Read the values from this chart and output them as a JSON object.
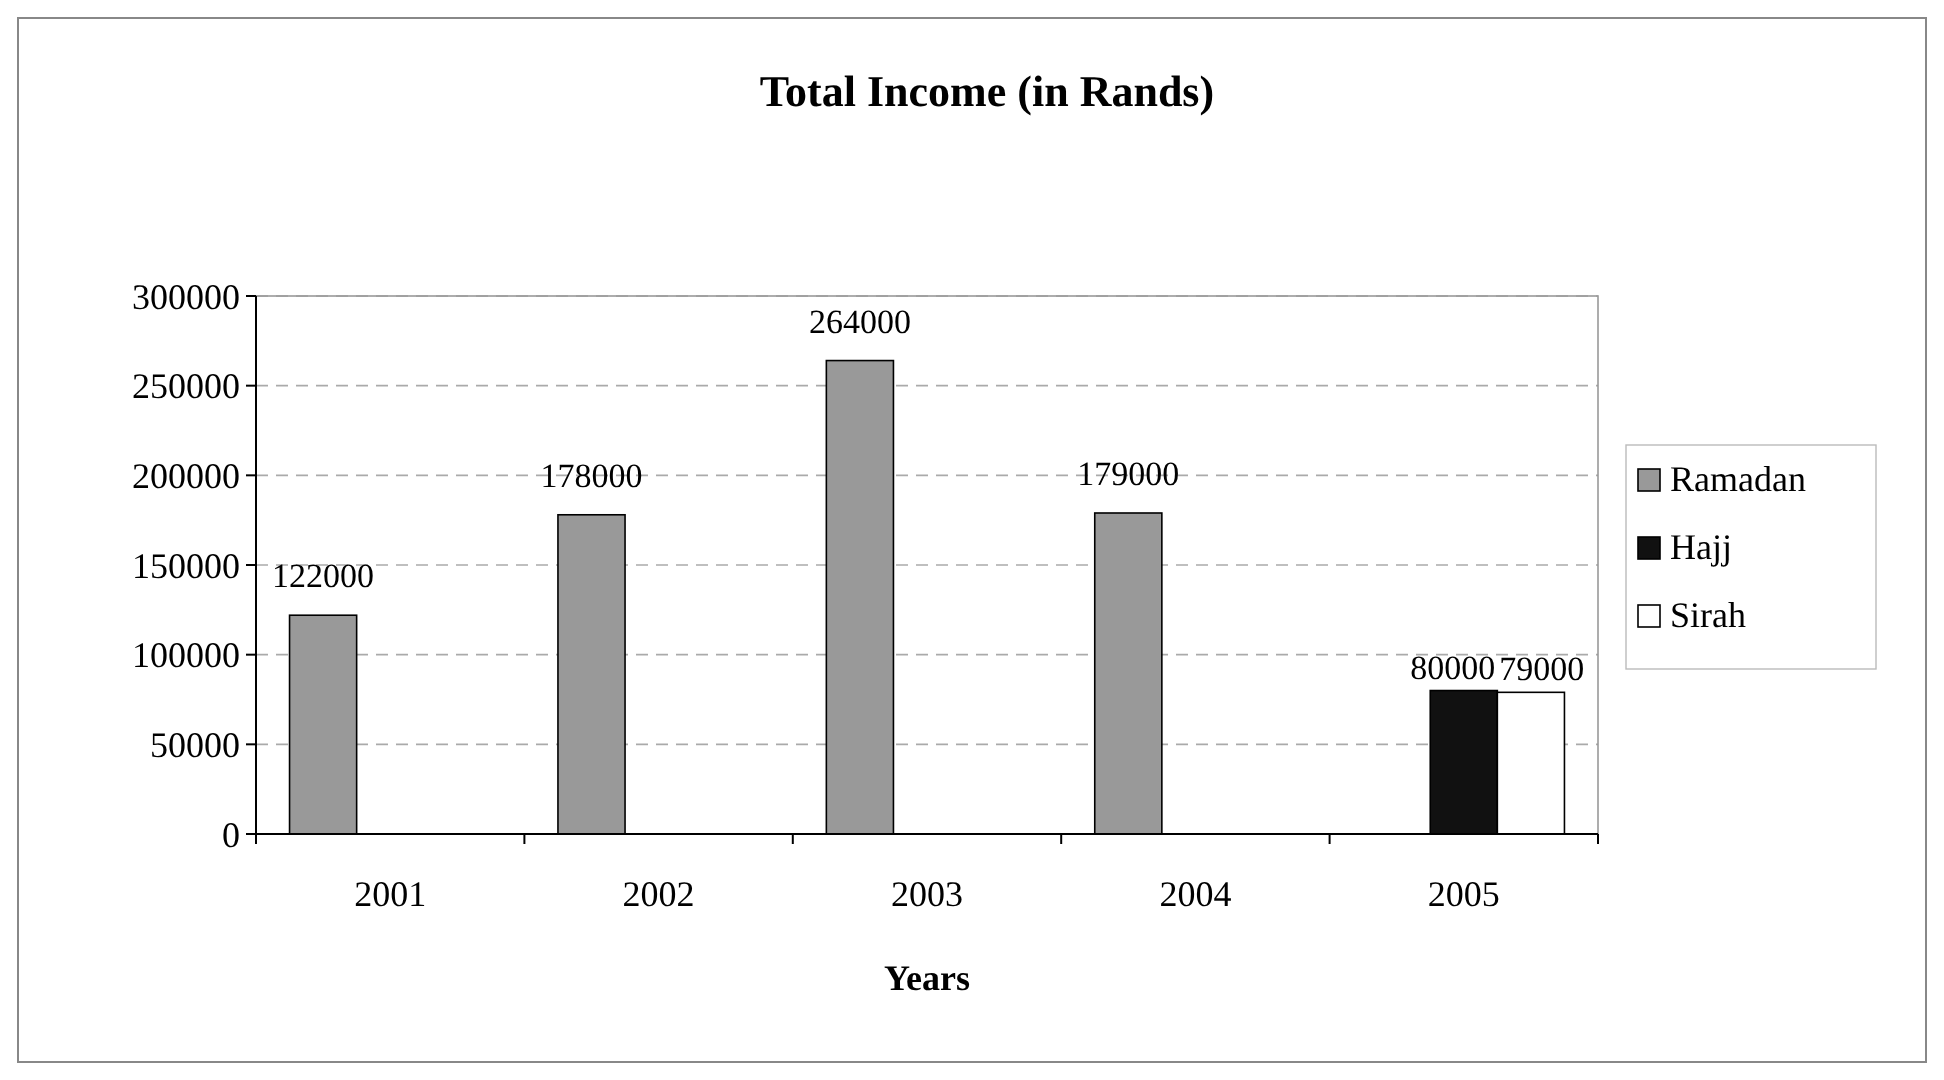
{
  "chart_data": {
    "type": "bar",
    "title": "Total Income (in Rands)",
    "xlabel": "Years",
    "categories": [
      "2001",
      "2002",
      "2003",
      "2004",
      "2005"
    ],
    "series": [
      {
        "name": "Ramadan",
        "color": "#999999",
        "values": [
          122000,
          178000,
          264000,
          179000,
          null
        ]
      },
      {
        "name": "Hajj",
        "color": "#111111",
        "values": [
          null,
          null,
          null,
          null,
          80000
        ]
      },
      {
        "name": "Sirah",
        "color": "#ffffff",
        "values": [
          null,
          null,
          null,
          null,
          79000
        ]
      }
    ],
    "ylim": [
      0,
      300000
    ],
    "yticks": [
      0,
      50000,
      100000,
      150000,
      200000,
      250000,
      300000
    ],
    "grid": "y",
    "legend": "right",
    "data_labels": true
  }
}
